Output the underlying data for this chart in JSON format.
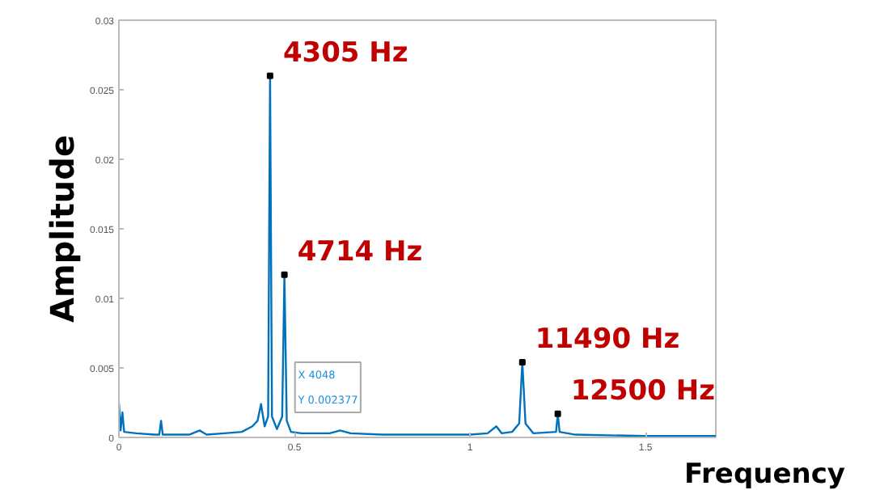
{
  "chart_data": {
    "type": "line",
    "xlabel": "Frequency",
    "ylabel": "Amplitude",
    "x": [
      0,
      0.005,
      0.01,
      0.015,
      0.05,
      0.1,
      0.115,
      0.12,
      0.125,
      0.2,
      0.23,
      0.25,
      0.3,
      0.35,
      0.38,
      0.395,
      0.4048,
      0.415,
      0.425,
      0.4305,
      0.436,
      0.45,
      0.465,
      0.4714,
      0.478,
      0.49,
      0.52,
      0.6,
      0.63,
      0.66,
      0.75,
      0.85,
      0.95,
      1.0,
      1.05,
      1.075,
      1.09,
      1.12,
      1.14,
      1.149,
      1.158,
      1.18,
      1.245,
      1.25,
      1.255,
      1.3,
      1.5,
      1.7
    ],
    "series": [
      {
        "color": "#0072bd",
        "values": [
          0.0025,
          0.0005,
          0.0018,
          0.0004,
          0.0003,
          0.0002,
          0.0002,
          0.0012,
          0.0002,
          0.0002,
          0.0005,
          0.0002,
          0.0003,
          0.0004,
          0.0008,
          0.0012,
          0.0024,
          0.0008,
          0.0015,
          0.026,
          0.0015,
          0.0006,
          0.0015,
          0.0117,
          0.0012,
          0.0004,
          0.0003,
          0.0003,
          0.0005,
          0.0003,
          0.0002,
          0.0002,
          0.0002,
          0.0002,
          0.0003,
          0.0008,
          0.0003,
          0.0004,
          0.001,
          0.0054,
          0.001,
          0.0003,
          0.0004,
          0.0017,
          0.0004,
          0.0002,
          0.0001,
          0.0001
        ]
      }
    ],
    "xlim": [
      0,
      1.7
    ],
    "ylim": [
      0,
      0.03
    ],
    "xticks": [
      0,
      0.5,
      1,
      1.5
    ],
    "yticks": [
      0,
      0.005,
      0.01,
      0.015,
      0.02,
      0.025,
      0.03
    ],
    "grid": false,
    "marker": "none",
    "line_style": "solid",
    "annotations": [
      {
        "text": "4305 Hz",
        "x": 0.4305,
        "y": 0.026
      },
      {
        "text": "4714 Hz",
        "x": 0.4714,
        "y": 0.0117
      },
      {
        "text": "11490 Hz",
        "x": 1.149,
        "y": 0.0054
      },
      {
        "text": "12500 Hz",
        "x": 1.25,
        "y": 0.0017
      },
      "X 4048",
      "Y 0.002377"
    ]
  }
}
